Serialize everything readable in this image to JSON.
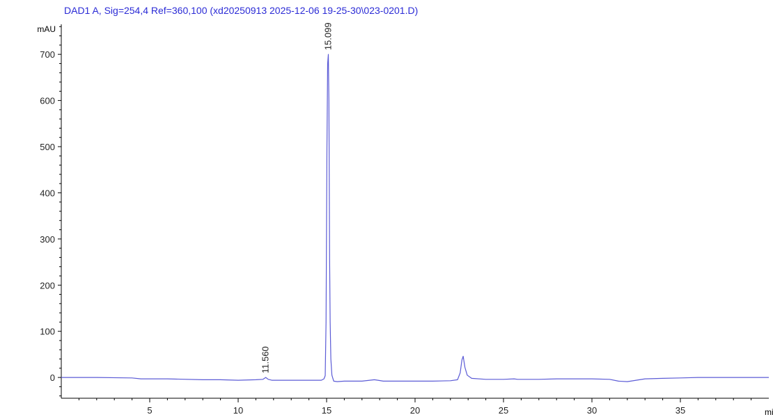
{
  "colors": {
    "title": "#2b2bd6",
    "trace": "#5b5bd6",
    "axis": "#000000",
    "text": "#222222"
  },
  "chart_data": {
    "type": "line",
    "title": "DAD1 A, Sig=254,4 Ref=360,100 (xd20250913 2025-12-06 19-25-30\\023-0201.D)",
    "xlabel": "min",
    "ylabel": "mAU",
    "xlim": [
      0,
      40
    ],
    "ylim": [
      -45,
      765
    ],
    "x_ticks": [
      5,
      10,
      15,
      20,
      25,
      30,
      35
    ],
    "y_ticks": [
      0,
      100,
      200,
      300,
      400,
      500,
      600,
      700
    ],
    "grid": false,
    "peak_labels": [
      {
        "x": 11.56,
        "label": "11.560"
      },
      {
        "x": 15.099,
        "label": "15.099"
      }
    ],
    "series": [
      {
        "x": [
          0,
          2,
          4,
          4.5,
          6,
          8,
          9,
          10,
          11,
          11.4,
          11.56,
          11.7,
          11.9,
          12.5,
          14,
          14.7,
          14.85,
          14.92,
          14.97,
          15.02,
          15.06,
          15.099,
          15.13,
          15.17,
          15.2,
          15.24,
          15.3,
          15.4,
          15.6,
          16,
          17,
          17.7,
          17.9,
          18.2,
          19,
          20,
          21,
          22,
          22.4,
          22.55,
          22.65,
          22.72,
          22.82,
          22.95,
          23.2,
          24,
          25,
          25.6,
          25.8,
          27,
          28,
          29,
          30,
          31,
          31.5,
          32,
          32.5,
          33,
          34,
          35,
          36,
          37,
          38,
          39,
          40
        ],
        "y": [
          0,
          0,
          -1,
          -3,
          -3,
          -5,
          -5,
          -6,
          -5,
          -4,
          0,
          -4,
          -6,
          -6,
          -6,
          -6,
          -3,
          4,
          120,
          500,
          680,
          700,
          600,
          260,
          120,
          40,
          5,
          -8,
          -9,
          -8,
          -8,
          -5,
          -6,
          -8,
          -8,
          -8,
          -8,
          -7,
          -5,
          10,
          38,
          46,
          22,
          5,
          -2,
          -4,
          -4,
          -3,
          -4,
          -4,
          -3,
          -3,
          -3,
          -4,
          -8,
          -9,
          -6,
          -3,
          -2,
          -1,
          0,
          0,
          0,
          0,
          0
        ]
      }
    ]
  }
}
